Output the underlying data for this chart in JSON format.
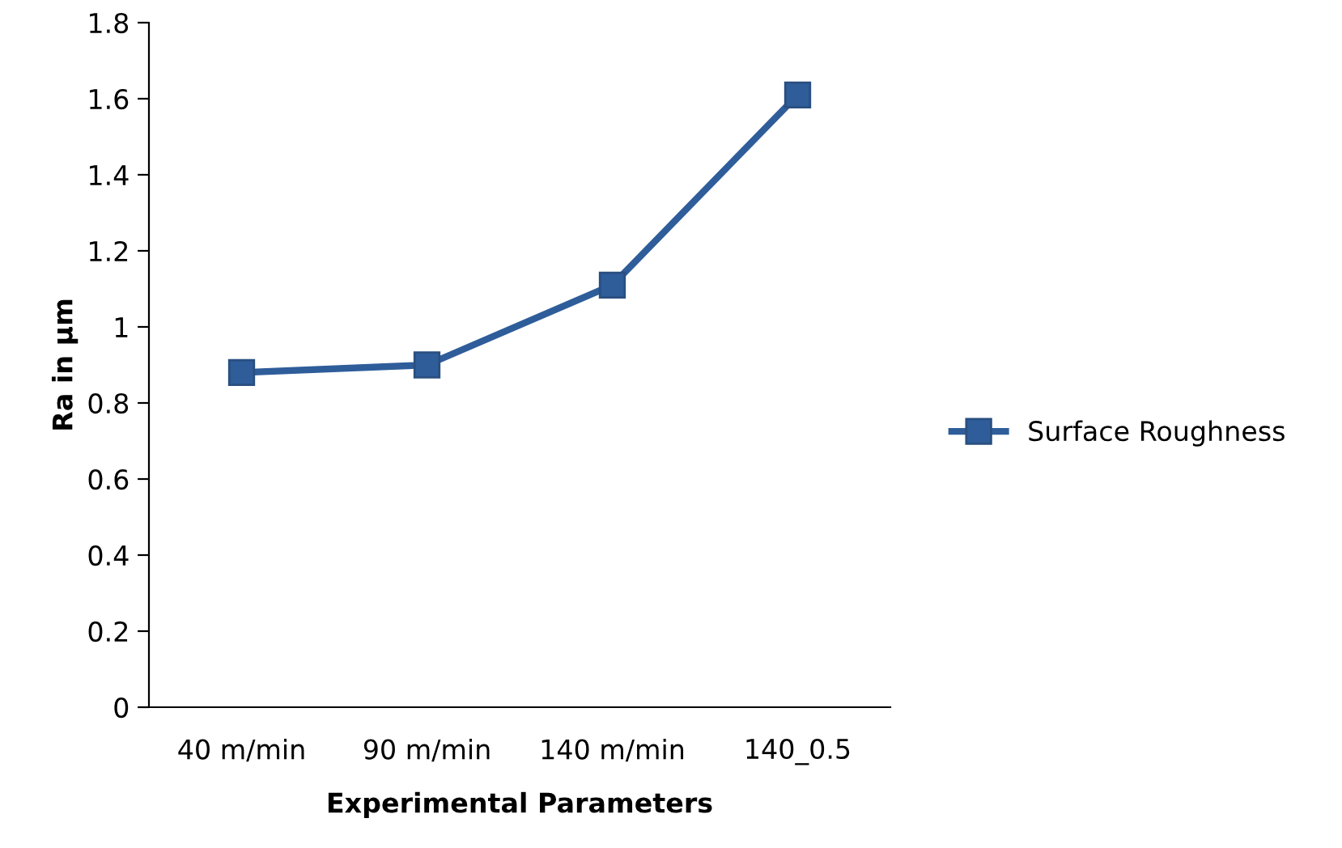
{
  "chart_data": {
    "type": "line",
    "xlabel": "Experimental Parameters",
    "ylabel": "Ra in µm",
    "categories": [
      "40 m/min",
      "90 m/min",
      "140 m/min",
      "140_0.5"
    ],
    "series": [
      {
        "name": "Surface Roughness",
        "color": "#2e5d9a",
        "values": [
          0.88,
          0.9,
          1.11,
          1.61
        ]
      }
    ],
    "ylim": [
      0,
      1.8
    ],
    "yticks": [
      0,
      {
        "value": 0.2,
        "label": "0.2"
      },
      {
        "value": 0.4,
        "label": "0.4"
      },
      {
        "value": 0.6,
        "label": "0.6"
      },
      {
        "value": 0.8,
        "label": "0.8"
      },
      1,
      {
        "value": 1.2,
        "label": "1.2"
      },
      {
        "value": 1.4,
        "label": "1.4"
      },
      {
        "value": 1.6,
        "label": "1.6"
      },
      {
        "value": 1.8,
        "label": "1.8"
      }
    ],
    "grid": false,
    "legend": "right",
    "marker": "square",
    "line_style": "solid"
  }
}
